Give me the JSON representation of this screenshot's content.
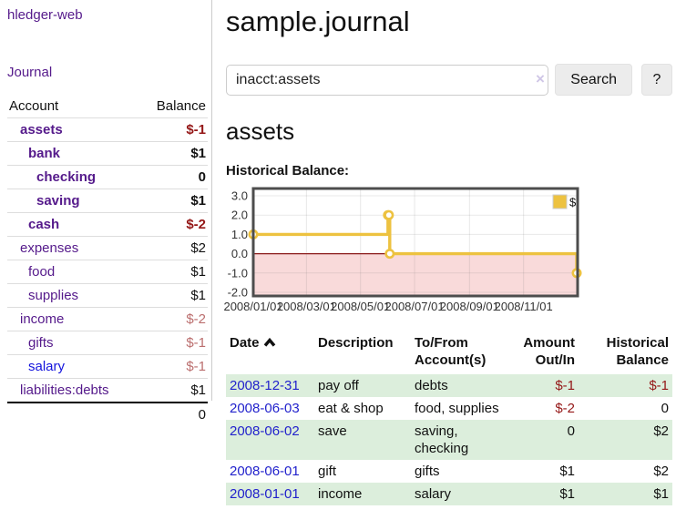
{
  "colors": {
    "link_purple": "#551a8b",
    "link_blue": "#1414dd",
    "date_link_blue": "#2222cc",
    "negative_strong": "#941717",
    "negative_soft": "#bb6e6e",
    "stripe_green": "#dceedc",
    "chart_gold": "#edc240",
    "chart_negative_pink": "#f9dada",
    "chart_zero_line": "#8b1a1a",
    "chart_border": "#4d4d4d"
  },
  "sidebar": {
    "brand": "hledger-web",
    "nav": {
      "journal": "Journal"
    },
    "accounts_table": {
      "headers": {
        "account": "Account",
        "balance": "Balance"
      },
      "rows": [
        {
          "name": "assets",
          "balance": "$-1",
          "level": 1,
          "bold": true,
          "neg": "strong"
        },
        {
          "name": "bank",
          "balance": "$1",
          "level": 2,
          "bold": true
        },
        {
          "name": "checking",
          "balance": "0",
          "level": 3,
          "bold": true
        },
        {
          "name": "saving",
          "balance": "$1",
          "level": 3,
          "bold": true
        },
        {
          "name": "cash",
          "balance": "$-2",
          "level": 2,
          "bold": true,
          "neg": "strong"
        },
        {
          "name": "expenses",
          "balance": "$2",
          "level": 1
        },
        {
          "name": "food",
          "balance": "$1",
          "level": 2
        },
        {
          "name": "supplies",
          "balance": "$1",
          "level": 2
        },
        {
          "name": "income",
          "balance": "$-2",
          "level": 1,
          "neg": "soft"
        },
        {
          "name": "gifts",
          "balance": "$-1",
          "level": 2,
          "neg": "soft"
        },
        {
          "name": "salary",
          "balance": "$-1",
          "level": 2,
          "neg": "soft",
          "blue": true
        },
        {
          "name": "liabilities:debts",
          "balance": "$1",
          "level": 1
        }
      ],
      "total": "0"
    }
  },
  "main": {
    "title": "sample.journal",
    "search": {
      "value": "inacct:assets",
      "clear_icon": "×",
      "button": "Search",
      "help_button": "?"
    },
    "account_heading": "assets",
    "chart_label": "Historical Balance:"
  },
  "chart_data": {
    "type": "line",
    "step": true,
    "title": "Historical Balance:",
    "series": [
      {
        "name": "$",
        "color": "#edc240",
        "points": [
          [
            "2008/01/01",
            1
          ],
          [
            "2008/06/01",
            2
          ],
          [
            "2008/06/02",
            2
          ],
          [
            "2008/06/03",
            0
          ],
          [
            "2008/12/31",
            -1
          ]
        ]
      }
    ],
    "x_range": [
      "2008/01/01",
      "2009/01/01"
    ],
    "x_tick_labels": [
      "2008/01/01",
      "2008/03/01",
      "2008/05/01",
      "2008/07/01",
      "2008/09/01",
      "2008/11/01"
    ],
    "y_ticks": [
      -2.0,
      -1.0,
      0.0,
      1.0,
      2.0,
      3.0
    ],
    "ylim": [
      -2,
      3
    ],
    "legend": {
      "label": "$",
      "position": "top-right"
    },
    "negative_region": true,
    "grid": true
  },
  "register": {
    "headers": {
      "date": "Date",
      "description": "Description",
      "tofrom": "To/From Account(s)",
      "amount": "Amount Out/In",
      "balance": "Historical Balance"
    },
    "rows": [
      {
        "date": "2008-12-31",
        "description": "pay off",
        "accounts": "debts",
        "amount": "$-1",
        "balance": "$-1"
      },
      {
        "date": "2008-06-03",
        "description": "eat & shop",
        "accounts": "food, supplies",
        "amount": "$-2",
        "balance": "0"
      },
      {
        "date": "2008-06-02",
        "description": "save",
        "accounts": "saving, checking",
        "amount": "0",
        "balance": "$2"
      },
      {
        "date": "2008-06-01",
        "description": "gift",
        "accounts": "gifts",
        "amount": "$1",
        "balance": "$2"
      },
      {
        "date": "2008-01-01",
        "description": "income",
        "accounts": "salary",
        "amount": "$1",
        "balance": "$1"
      }
    ]
  }
}
